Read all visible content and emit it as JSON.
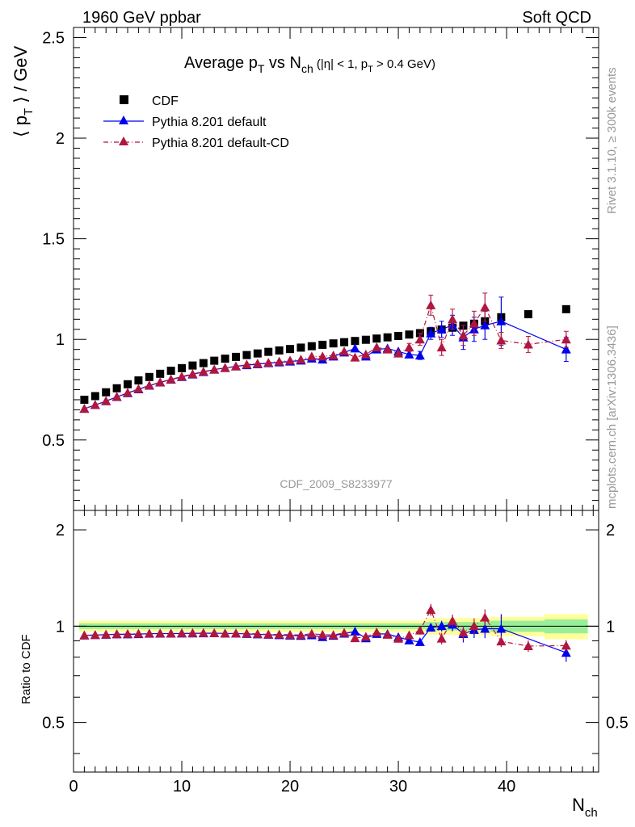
{
  "header": {
    "left": "1960 GeV ppbar",
    "right": "Soft QCD"
  },
  "side": {
    "rivet": "Rivet 3.1.10, ≥ 300k events",
    "mcplots": "mcplots.cern.ch [arXiv:1306.3436]"
  },
  "chart_data": {
    "type": "scatter",
    "title": {
      "main": "Average p",
      "sub_T": "T",
      "vs": " vs N",
      "sub_ch": "ch",
      "cuts_a": " (|η| < 1, p",
      "cuts_T": "T",
      "cuts_b": " > 0.4 GeV)"
    },
    "analysis_id": "CDF_2009_S8233977",
    "ylabel": {
      "a": "⟨ p",
      "sub": "T",
      "b": " ⟩ / GeV"
    },
    "xlabel": {
      "main": "N",
      "sub": "ch"
    },
    "ratio_ylabel": "Ratio to CDF",
    "xlim": [
      0,
      48.5
    ],
    "ylim": [
      0.15,
      2.55
    ],
    "ratio_ylim": [
      0.35,
      2.3
    ],
    "x_ticks": [
      "0",
      "10",
      "20",
      "30",
      "40"
    ],
    "x_tick_values": [
      0,
      10,
      20,
      30,
      40
    ],
    "y_ticks": [
      "0.5",
      "1",
      "1.5",
      "2",
      "2.5"
    ],
    "y_tick_values": [
      0.5,
      1,
      1.5,
      2,
      2.5
    ],
    "ratio_ticks": [
      "0.5",
      "1",
      "2"
    ],
    "ratio_tick_values": [
      0.5,
      1,
      2
    ],
    "legend_position": "top-left",
    "series": [
      {
        "name": "CDF",
        "marker": "square",
        "color": "#000000",
        "x": [
          1,
          2,
          3,
          4,
          5,
          6,
          7,
          8,
          9,
          10,
          11,
          12,
          13,
          14,
          15,
          16,
          17,
          18,
          19,
          20,
          21,
          22,
          23,
          24,
          25,
          26,
          27,
          28,
          29,
          30,
          31,
          32,
          33,
          34,
          35,
          36,
          37,
          38,
          39.5,
          42,
          45.5
        ],
        "y": [
          0.7,
          0.718,
          0.737,
          0.757,
          0.777,
          0.796,
          0.813,
          0.829,
          0.844,
          0.857,
          0.87,
          0.882,
          0.894,
          0.904,
          0.913,
          0.922,
          0.93,
          0.938,
          0.945,
          0.952,
          0.959,
          0.966,
          0.973,
          0.98,
          0.986,
          0.992,
          0.998,
          1.004,
          1.01,
          1.017,
          1.024,
          1.031,
          1.04,
          1.049,
          1.058,
          1.068,
          1.078,
          1.09,
          1.11,
          1.125,
          1.15
        ]
      },
      {
        "name": "Pythia 8.201 default",
        "marker": "triangle",
        "color": "#0000ee",
        "line": "solid",
        "x": [
          1,
          2,
          3,
          4,
          5,
          6,
          7,
          8,
          9,
          10,
          11,
          12,
          13,
          14,
          15,
          16,
          17,
          18,
          19,
          20,
          21,
          22,
          23,
          24,
          25,
          26,
          27,
          28,
          29,
          30,
          31,
          32,
          33,
          34,
          35,
          36,
          37,
          38,
          39.5,
          45.5
        ],
        "y": [
          0.655,
          0.674,
          0.693,
          0.714,
          0.733,
          0.752,
          0.77,
          0.786,
          0.8,
          0.813,
          0.826,
          0.838,
          0.85,
          0.858,
          0.866,
          0.872,
          0.877,
          0.882,
          0.886,
          0.89,
          0.895,
          0.905,
          0.9,
          0.915,
          0.935,
          0.955,
          0.915,
          0.95,
          0.955,
          0.94,
          0.925,
          0.92,
          1.03,
          1.05,
          1.07,
          1.01,
          1.05,
          1.07,
          1.09,
          0.95
        ],
        "yerr": [
          0,
          0,
          0,
          0,
          0,
          0,
          0,
          0,
          0,
          0,
          0,
          0,
          0,
          0,
          0,
          0,
          0,
          0,
          0,
          0,
          0,
          0,
          0,
          0,
          0,
          0,
          0,
          0,
          0,
          0,
          0,
          0.02,
          0.03,
          0.04,
          0.05,
          0.06,
          0.06,
          0.07,
          0.12,
          0.06
        ]
      },
      {
        "name": "Pythia 8.201 default-CD",
        "marker": "triangle",
        "color": "#b0173f",
        "line": "dashdot",
        "x": [
          1,
          2,
          3,
          4,
          5,
          6,
          7,
          8,
          9,
          10,
          11,
          12,
          13,
          14,
          15,
          16,
          17,
          18,
          19,
          20,
          21,
          22,
          23,
          24,
          25,
          26,
          27,
          28,
          29,
          30,
          31,
          32,
          33,
          34,
          35,
          36,
          37,
          38,
          39.5,
          42,
          45.5
        ],
        "y": [
          0.655,
          0.674,
          0.694,
          0.715,
          0.735,
          0.754,
          0.771,
          0.787,
          0.801,
          0.815,
          0.828,
          0.84,
          0.85,
          0.858,
          0.866,
          0.875,
          0.88,
          0.884,
          0.89,
          0.895,
          0.9,
          0.915,
          0.915,
          0.92,
          0.94,
          0.91,
          0.925,
          0.96,
          0.95,
          0.93,
          0.96,
          1.0,
          1.17,
          0.96,
          1.1,
          1.02,
          1.08,
          1.16,
          0.995,
          0.975,
          1.0
        ],
        "yerr": [
          0,
          0,
          0,
          0,
          0,
          0,
          0,
          0,
          0,
          0,
          0,
          0,
          0,
          0,
          0,
          0,
          0,
          0,
          0,
          0,
          0,
          0,
          0,
          0,
          0,
          0,
          0,
          0,
          0,
          0,
          0.02,
          0.03,
          0.05,
          0.04,
          0.05,
          0.05,
          0.06,
          0.07,
          0.04,
          0.04,
          0.04
        ]
      }
    ],
    "ratio_bands": [
      {
        "x0": 0.5,
        "x1": 32.5,
        "inner": 0.02,
        "outer": 0.04
      },
      {
        "x0": 32.5,
        "x1": 38.5,
        "inner": 0.03,
        "outer": 0.06
      },
      {
        "x0": 38.5,
        "x1": 43.5,
        "inner": 0.04,
        "outer": 0.07
      },
      {
        "x0": 43.5,
        "x1": 47.5,
        "inner": 0.05,
        "outer": 0.09
      }
    ]
  }
}
